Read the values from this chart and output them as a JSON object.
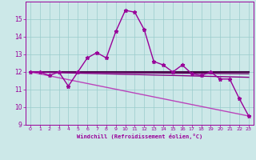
{
  "xlabel": "Windchill (Refroidissement éolien,°C)",
  "bg_color": "#cce8e8",
  "grid_color": "#99cccc",
  "text_color": "#990099",
  "spine_color": "#990099",
  "xlim": [
    -0.5,
    23.5
  ],
  "ylim": [
    9,
    16
  ],
  "yticks": [
    9,
    10,
    11,
    12,
    13,
    14,
    15
  ],
  "xticks": [
    0,
    1,
    2,
    3,
    4,
    5,
    6,
    7,
    8,
    9,
    10,
    11,
    12,
    13,
    14,
    15,
    16,
    17,
    18,
    19,
    20,
    21,
    22,
    23
  ],
  "main_series": {
    "x": [
      0,
      1,
      2,
      3,
      4,
      5,
      6,
      7,
      8,
      9,
      10,
      11,
      12,
      13,
      14,
      15,
      16,
      17,
      18,
      19,
      20,
      21,
      22,
      23
    ],
    "y": [
      12.0,
      12.0,
      11.8,
      12.0,
      11.2,
      12.0,
      12.8,
      13.1,
      12.8,
      14.3,
      15.5,
      15.4,
      14.4,
      12.6,
      12.4,
      12.0,
      12.4,
      11.9,
      11.8,
      12.0,
      11.6,
      11.6,
      10.5,
      9.5
    ],
    "color": "#990099",
    "lw": 1.0,
    "ms": 3.5
  },
  "trend_lines": [
    {
      "x": [
        0,
        23
      ],
      "y": [
        12.0,
        12.0
      ],
      "color": "#440044",
      "lw": 1.5
    },
    {
      "x": [
        0,
        23
      ],
      "y": [
        12.0,
        11.9
      ],
      "color": "#660066",
      "lw": 1.0
    },
    {
      "x": [
        0,
        23
      ],
      "y": [
        12.0,
        11.7
      ],
      "color": "#880088",
      "lw": 1.0
    },
    {
      "x": [
        0,
        23
      ],
      "y": [
        12.0,
        9.5
      ],
      "color": "#bb44bb",
      "lw": 1.0
    }
  ]
}
